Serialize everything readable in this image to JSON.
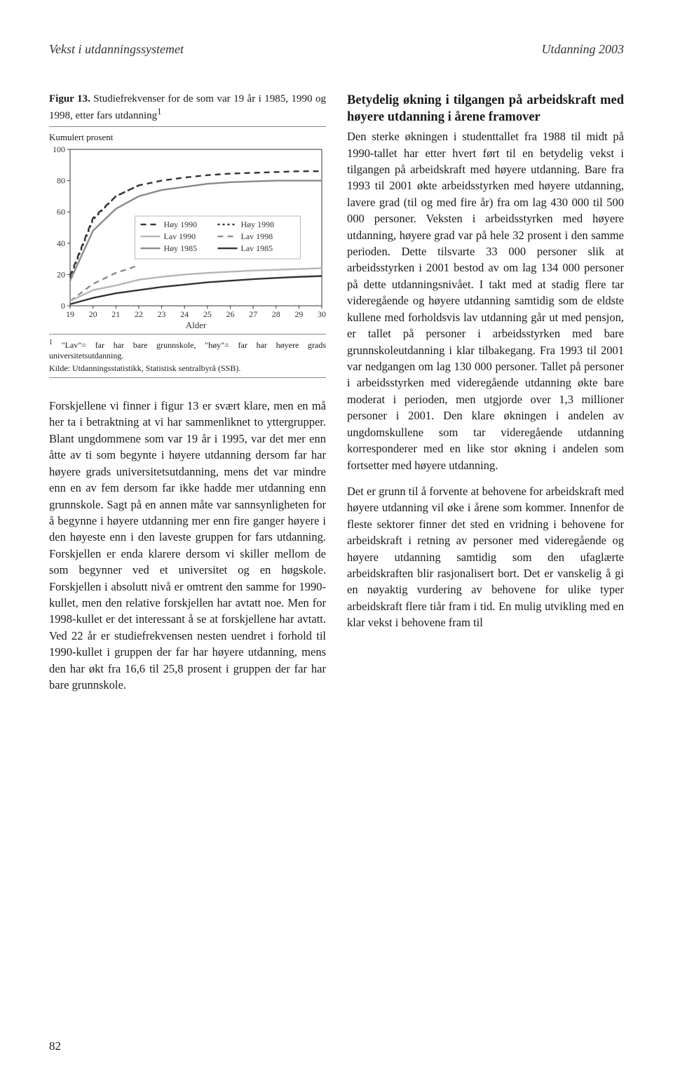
{
  "header": {
    "left": "Vekst i utdanningssystemet",
    "right": "Utdanning 2003"
  },
  "page_number": "82",
  "figure": {
    "caption_bold": "Figur 13.",
    "caption_rest": " Studiefrekvenser for de som var 19 år i 1985, 1990 og 1998, etter fars utdanning",
    "caption_sup": "1",
    "y_axis_label": "Kumulert prosent",
    "x_axis_label": "Alder",
    "footnote_sup": "1",
    "footnote_text": " \"Lav\"= far har bare grunnskole, \"høy\"= far har høyere grads universitetsutdanning.",
    "source": "Kilde: Utdanningsstatistikk, Statistisk sentralbyrå (SSB).",
    "chart": {
      "type": "line",
      "xlim": [
        19,
        30
      ],
      "ylim": [
        0,
        100
      ],
      "xtick_step": 1,
      "ytick_step": 20,
      "background_color": "#ffffff",
      "grid": false,
      "axis_color": "#333333",
      "tick_fontsize": 12,
      "legend": {
        "position": "center",
        "fontsize": 12,
        "items": [
          {
            "label": "Høy 1990",
            "color": "#333333",
            "dash": "8,6",
            "width": 2
          },
          {
            "label": "Lav 1990",
            "color": "#b5b5b5",
            "dash": "none",
            "width": 2
          },
          {
            "label": "Høy 1985",
            "color": "#8a8a8a",
            "dash": "none",
            "width": 2
          },
          {
            "label": "Høy 1998",
            "color": "#333333",
            "dash": "3,4",
            "width": 2
          },
          {
            "label": "Lav 1998",
            "color": "#8a8a8a",
            "dash": "8,6",
            "width": 2
          },
          {
            "label": "Lav 1985",
            "color": "#333333",
            "dash": "none",
            "width": 2
          }
        ]
      },
      "series": [
        {
          "name": "Høy 1990",
          "color": "#333333",
          "dash": "8,6",
          "width": 2.4,
          "x": [
            19,
            20,
            21,
            22,
            23,
            24,
            25,
            26,
            27,
            28,
            29,
            30
          ],
          "y": [
            19,
            56,
            70,
            77,
            80,
            82,
            83.5,
            84.5,
            85,
            85.5,
            86,
            86
          ]
        },
        {
          "name": "Høy 1998",
          "color": "#333333",
          "dash": "3,4",
          "width": 2.4,
          "x": [
            19,
            20,
            21,
            22
          ],
          "y": [
            18,
            55,
            70,
            77
          ]
        },
        {
          "name": "Høy 1985",
          "color": "#8a8a8a",
          "dash": "none",
          "width": 2.4,
          "x": [
            19,
            20,
            21,
            22,
            23,
            24,
            25,
            26,
            27,
            28,
            29,
            30
          ],
          "y": [
            16,
            48,
            62,
            70,
            74,
            76,
            78,
            79,
            79.5,
            80,
            80,
            80
          ]
        },
        {
          "name": "Lav 1998",
          "color": "#8a8a8a",
          "dash": "8,6",
          "width": 2.4,
          "x": [
            19,
            20,
            21,
            22
          ],
          "y": [
            3,
            14,
            21,
            25.8
          ]
        },
        {
          "name": "Lav 1990",
          "color": "#b5b5b5",
          "dash": "none",
          "width": 2.4,
          "x": [
            19,
            20,
            21,
            22,
            23,
            24,
            25,
            26,
            27,
            28,
            29,
            30
          ],
          "y": [
            3,
            10,
            13,
            16.6,
            18.5,
            20,
            21,
            21.8,
            22.5,
            23,
            23.5,
            24
          ]
        },
        {
          "name": "Lav 1985",
          "color": "#333333",
          "dash": "none",
          "width": 2.4,
          "x": [
            19,
            20,
            21,
            22,
            23,
            24,
            25,
            26,
            27,
            28,
            29,
            30
          ],
          "y": [
            1,
            5,
            8,
            10,
            12,
            13.5,
            15,
            16,
            17,
            17.8,
            18.5,
            19
          ]
        }
      ]
    }
  },
  "left_text": "Forskjellene vi finner i figur 13 er svært klare, men en må her ta i betraktning at vi har sammenliknet to yttergrupper. Blant ungdommene som var 19 år i 1995, var det mer enn åtte av ti som begynte i høyere utdanning dersom far har høyere grads universitetsutdanning, mens det var mindre enn en av fem dersom far ikke hadde mer utdanning enn grunnskole. Sagt på en annen måte var sannsynligheten for å begynne i høyere utdanning mer enn fire ganger høyere i den høyeste enn i den laveste gruppen for fars utdanning. Forskjellen er enda klarere dersom vi skiller mellom de som begynner ved et universitet og en høgskole. Forskjellen i absolutt nivå er omtrent den samme for 1990-kullet, men den relative forskjellen har avtatt noe. Men for 1998-kullet er det interessant å se at forskjellene har avtatt. Ved 22 år er studiefrekvensen nesten uendret i forhold til 1990-kullet i gruppen der far har høyere utdanning, mens den har økt fra 16,6 til 25,8 prosent i gruppen der far har bare grunnskole.",
  "right_heading": "Betydelig økning i tilgangen på arbeidskraft med høyere utdanning i årene framover",
  "right_text_1": "Den sterke økningen i studenttallet fra 1988 til midt på 1990-tallet har etter hvert ført til en betydelig vekst i tilgangen på arbeidskraft med høyere utdanning. Bare fra 1993 til 2001 økte arbeidsstyrken med høyere utdanning, lavere grad (til og med fire år) fra om lag 430 000 til 500 000 personer. Veksten i arbeidsstyrken med høyere utdanning, høyere grad var på hele 32 prosent i den samme perioden. Dette tilsvarte 33 000 personer slik at arbeidsstyrken i 2001 bestod av om lag 134 000 personer på dette utdanningsnivået. I takt med at stadig flere tar videregående og høyere utdanning samtidig som de eldste kullene med forholdsvis lav utdanning går ut med pensjon, er tallet på personer i arbeidsstyrken med bare grunnskoleutdanning i klar tilbakegang. Fra 1993 til 2001 var nedgangen om lag 130 000 personer. Tallet på personer i arbeidsstyrken med videregående utdanning økte bare moderat i perioden, men utgjorde over 1,3 millioner personer i 2001. Den klare økningen i andelen av ungdomskullene som tar videregående utdanning korresponderer med en like stor økning i andelen som fortsetter med høyere utdanning.",
  "right_text_2": "Det er grunn til å forvente at behovene for arbeidskraft med høyere utdanning vil øke i årene som kommer. Innenfor de fleste sektorer finner det sted en vridning i behovene for arbeidskraft i retning av personer med videregående og høyere utdanning samtidig som den ufaglærte arbeidskraften blir rasjonalisert bort. Det er vanskelig å gi en nøyaktig vurdering av behovene for ulike typer arbeidskraft flere tiår fram i tid. En mulig utvikling med en klar vekst i behovene fram til"
}
